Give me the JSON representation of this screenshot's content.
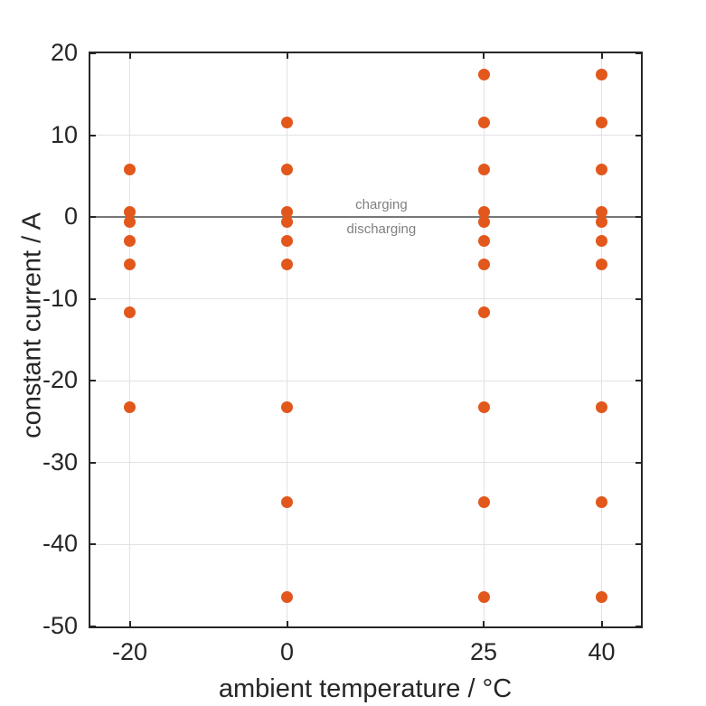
{
  "chart_data": {
    "type": "scatter",
    "title": "",
    "xlabel": "ambient temperature / °C",
    "ylabel": "constant current / A",
    "xlim": [
      -25,
      45
    ],
    "ylim": [
      -50,
      20
    ],
    "xticks": [
      -20,
      0,
      25,
      40
    ],
    "yticks": [
      20,
      10,
      0,
      -10,
      -20,
      -30,
      -40,
      -50
    ],
    "grid": true,
    "legend": "none",
    "grid_color": "#e2e2e2",
    "axis_color": "#262626",
    "text_color": "#262626",
    "marker_color": "#e2571c",
    "marker_size_px": 13,
    "zero_line": {
      "y": 0,
      "color": "#787878",
      "label_above": "charging",
      "label_below": "discharging",
      "label_color": "#808080",
      "label_x": 12
    },
    "series": [
      {
        "groups": [
          {
            "x": -20,
            "currents": [
              5.8,
              0.58,
              -0.58,
              -2.9,
              -5.8,
              -11.6,
              -23.2
            ]
          },
          {
            "x": 0,
            "currents": [
              11.6,
              5.8,
              0.58,
              -0.58,
              -2.9,
              -5.8,
              -23.2,
              -34.8,
              -46.4
            ]
          },
          {
            "x": 25,
            "currents": [
              17.4,
              11.6,
              5.8,
              0.58,
              -0.58,
              -2.9,
              -5.8,
              -11.6,
              -23.2,
              -34.8,
              -46.4
            ]
          },
          {
            "x": 40,
            "currents": [
              17.4,
              11.6,
              5.8,
              0.58,
              -0.58,
              -2.9,
              -5.8,
              -23.2,
              -34.8,
              -46.4
            ]
          }
        ]
      }
    ]
  }
}
